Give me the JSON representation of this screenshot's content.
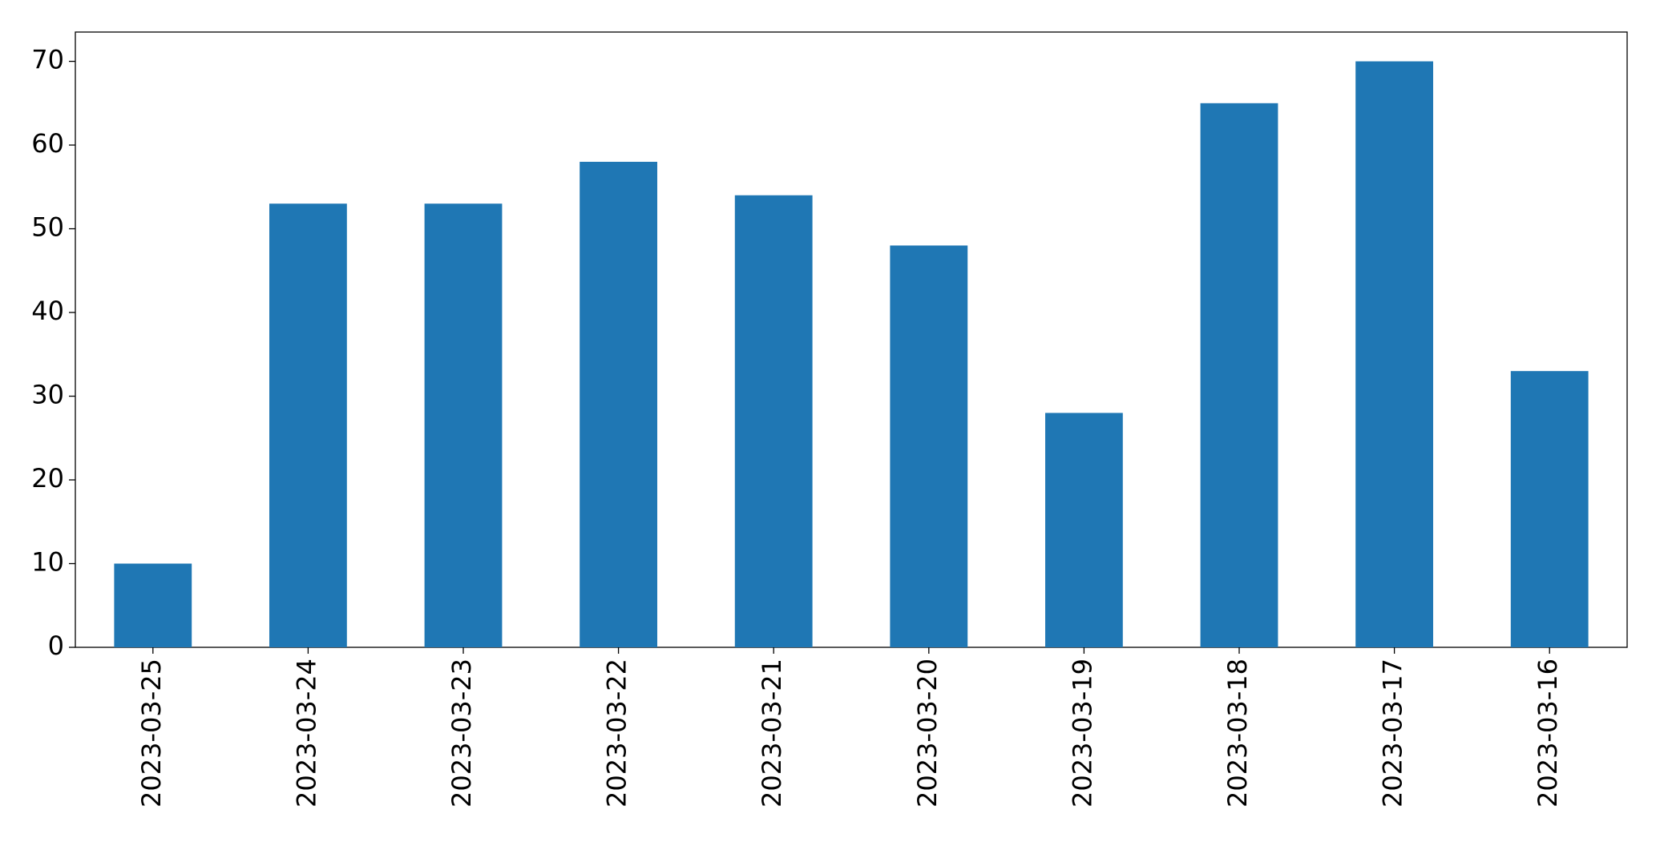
{
  "chart_data": {
    "type": "bar",
    "categories": [
      "2023-03-25",
      "2023-03-24",
      "2023-03-23",
      "2023-03-22",
      "2023-03-21",
      "2023-03-20",
      "2023-03-19",
      "2023-03-18",
      "2023-03-17",
      "2023-03-16"
    ],
    "values": [
      10,
      53,
      53,
      58,
      54,
      48,
      28,
      65,
      70,
      33
    ],
    "color": "#1f77b4",
    "ylim": [
      0,
      73.5
    ],
    "yticks": [
      0,
      10,
      20,
      30,
      40,
      50,
      60,
      70
    ],
    "grid": false
  }
}
